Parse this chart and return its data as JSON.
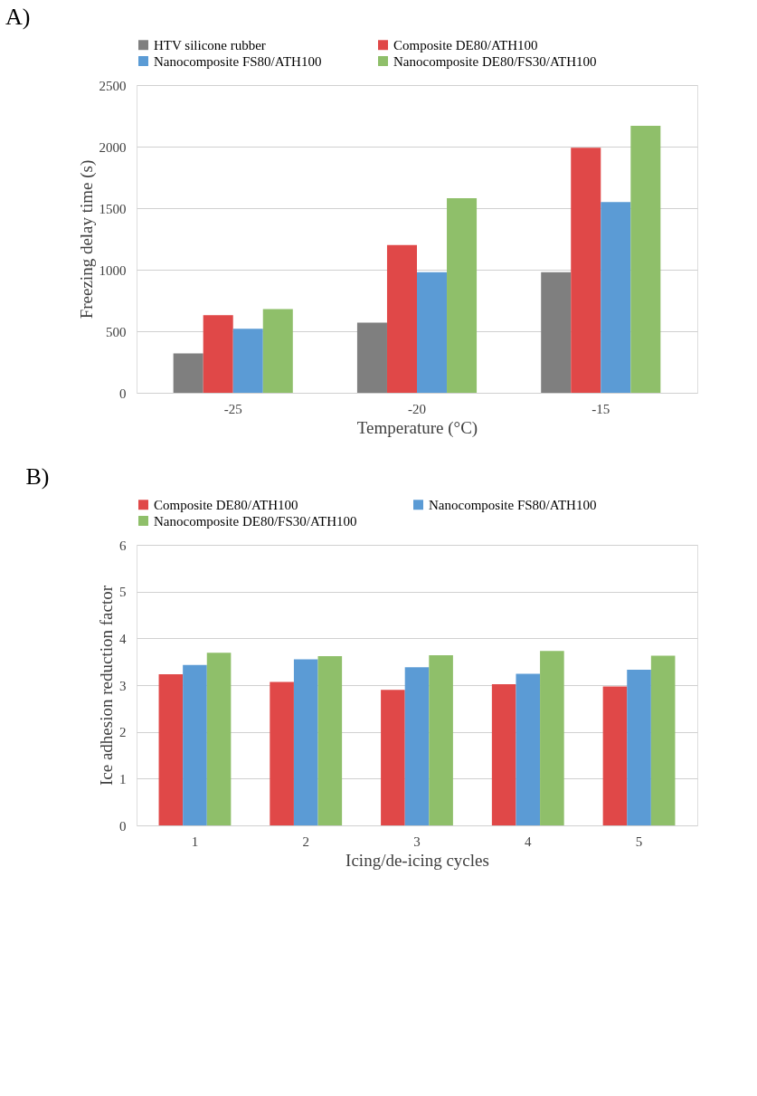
{
  "chart_data": [
    {
      "type": "bar",
      "title": "A)",
      "xlabel": "Temperature (°C)",
      "ylabel": "Freezing delay time (s)",
      "categories": [
        "-25",
        "-20",
        "-15"
      ],
      "ylim": [
        0,
        2500
      ],
      "yticks": [
        0,
        500,
        1000,
        1500,
        2000,
        2500
      ],
      "grid": "y",
      "legend": "top",
      "series": [
        {
          "name": "HTV silicone rubber",
          "color": "#7f7f7f",
          "values": [
            320,
            570,
            980
          ]
        },
        {
          "name": "Composite DE80/ATH100",
          "color": "#e04848",
          "values": [
            630,
            1200,
            1990
          ]
        },
        {
          "name": "Nanocomposite FS80/ATH100",
          "color": "#5b9bd5",
          "values": [
            520,
            980,
            1550
          ]
        },
        {
          "name": "Nanocomposite DE80/FS30/ATH100",
          "color": "#8fbf6a",
          "values": [
            680,
            1580,
            2170
          ]
        }
      ]
    },
    {
      "type": "bar",
      "title": "B)",
      "xlabel": "Icing/de-icing  cycles",
      "ylabel": "Ice adhesion reduction factor",
      "categories": [
        "1",
        "2",
        "3",
        "4",
        "5"
      ],
      "ylim": [
        0,
        6
      ],
      "yticks": [
        0,
        1,
        2,
        3,
        4,
        5,
        6
      ],
      "grid": "y",
      "legend": "top",
      "series": [
        {
          "name": "Composite DE80/ATH100",
          "color": "#e04848",
          "values": [
            3.23,
            3.07,
            2.9,
            3.02,
            2.97
          ]
        },
        {
          "name": "Nanocomposite FS80/ATH100",
          "color": "#5b9bd5",
          "values": [
            3.43,
            3.55,
            3.38,
            3.24,
            3.33
          ]
        },
        {
          "name": "Nanocomposite DE80/FS30/ATH100",
          "color": "#8fbf6a",
          "values": [
            3.69,
            3.62,
            3.64,
            3.73,
            3.63
          ]
        }
      ]
    }
  ]
}
